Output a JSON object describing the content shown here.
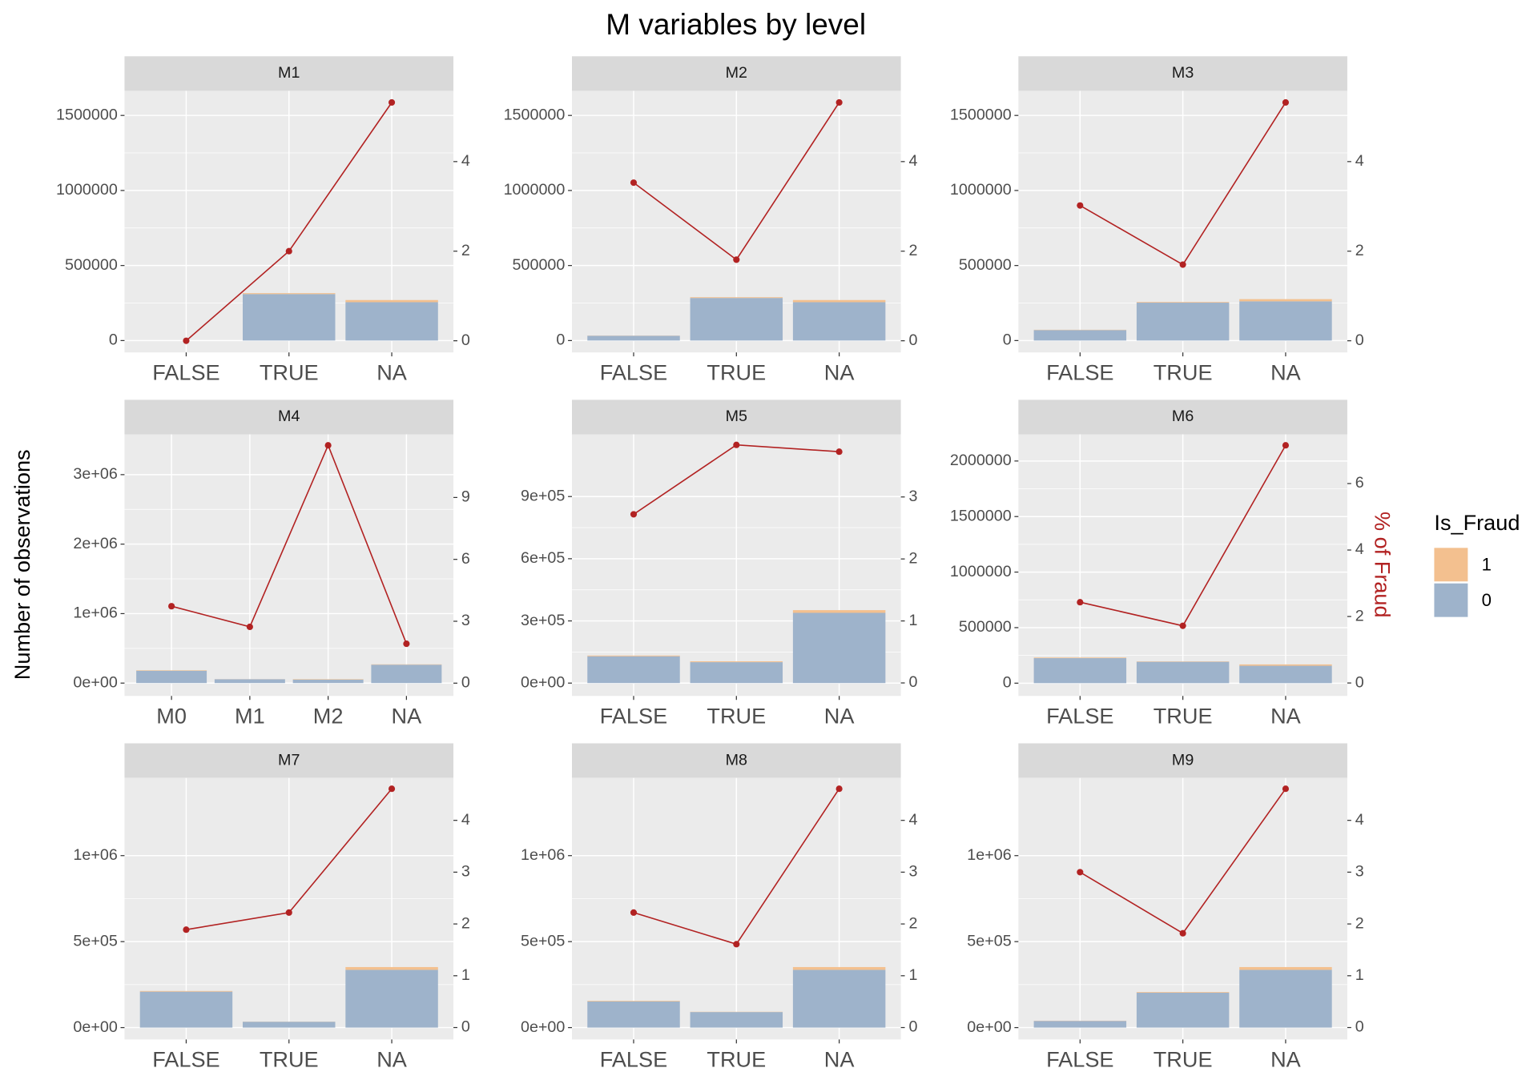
{
  "title": "M variables by level",
  "y_label": "Number of observations",
  "y2_label": "% of Fraud",
  "legend": {
    "title": "Is_Fraud",
    "entries": [
      {
        "name": "1",
        "color": "#f3c08f"
      },
      {
        "name": "0",
        "color": "#9eb3cb"
      }
    ]
  },
  "chart_data": [
    {
      "type": "bar",
      "title": "M1",
      "categories": [
        "FALSE",
        "TRUE",
        "NA"
      ],
      "series": [
        {
          "color": "#9eb3cb",
          "values": [
            25,
            309680,
            255600
          ]
        },
        {
          "color": "#f3c08f",
          "values": [
            0,
            6320,
            14400
          ]
        },
        {
          "type": "line",
          "axis": "y2",
          "color": "#b22222",
          "values": [
            0,
            2.0,
            5.32
          ]
        }
      ],
      "ylim": [
        -79000,
        1664000
      ],
      "yticks": [
        0,
        500000,
        1000000,
        1500000
      ],
      "y2lim": [
        -0.26,
        5.58
      ],
      "y2ticks": [
        0,
        2,
        4
      ]
    },
    {
      "type": "bar",
      "title": "M2",
      "categories": [
        "FALSE",
        "TRUE",
        "NA"
      ],
      "series": [
        {
          "color": "#9eb3cb",
          "values": [
            31800,
            283800,
            255600
          ]
        },
        {
          "color": "#f3c08f",
          "values": [
            1200,
            5200,
            14400
          ]
        },
        {
          "type": "line",
          "axis": "y2",
          "color": "#b22222",
          "values": [
            3.53,
            1.81,
            5.32
          ]
        }
      ],
      "ylim": [
        -79000,
        1664000
      ],
      "yticks": [
        0,
        500000,
        1000000,
        1500000
      ],
      "y2lim": [
        -0.26,
        5.58
      ],
      "y2ticks": [
        0,
        2,
        4
      ]
    },
    {
      "type": "bar",
      "title": "M3",
      "categories": [
        "FALSE",
        "TRUE",
        "NA"
      ],
      "series": [
        {
          "color": "#9eb3cb",
          "values": [
            69800,
            252600,
            261300
          ]
        },
        {
          "color": "#f3c08f",
          "values": [
            2200,
            4400,
            14700
          ]
        },
        {
          "type": "line",
          "axis": "y2",
          "color": "#b22222",
          "values": [
            3.02,
            1.7,
            5.32
          ]
        }
      ],
      "ylim": [
        -79000,
        1664000
      ],
      "yticks": [
        0,
        500000,
        1000000,
        1500000
      ],
      "y2lim": [
        -0.26,
        5.58
      ],
      "y2ticks": [
        0,
        2,
        4
      ]
    },
    {
      "type": "bar",
      "title": "M4",
      "categories": [
        "M0",
        "M1",
        "M2",
        "NA"
      ],
      "series": [
        {
          "color": "#9eb3cb",
          "values": [
            178100,
            55400,
            50400,
            264800
          ]
        },
        {
          "color": "#f3c08f",
          "values": [
            6900,
            1600,
            6600,
            5200
          ]
        },
        {
          "type": "line",
          "axis": "y2",
          "color": "#b22222",
          "values": [
            3.73,
            2.73,
            11.53,
            1.91
          ]
        }
      ],
      "ylim": [
        -185000,
        3580000
      ],
      "yticks": [
        {
          "value": 0,
          "label": "0e+00"
        },
        {
          "value": 1000000,
          "label": "1e+06"
        },
        {
          "value": 2000000,
          "label": "2e+06"
        },
        {
          "value": 3000000,
          "label": "3e+06"
        }
      ],
      "y2lim": [
        -0.62,
        12.06
      ],
      "y2ticks": [
        0,
        3,
        6,
        9
      ]
    },
    {
      "type": "bar",
      "title": "M5",
      "categories": [
        "FALSE",
        "TRUE",
        "NA"
      ],
      "series": [
        {
          "color": "#9eb3cb",
          "values": [
            129400,
            101000,
            338900
          ]
        },
        {
          "color": "#f3c08f",
          "values": [
            3600,
            4000,
            13100
          ]
        },
        {
          "type": "line",
          "axis": "y2",
          "color": "#b22222",
          "values": [
            2.72,
            3.84,
            3.73
          ]
        }
      ],
      "ylim": [
        -62000,
        1200000
      ],
      "yticks": [
        {
          "value": 0,
          "label": "0e+00"
        },
        {
          "value": 300000,
          "label": "3e+05"
        },
        {
          "value": 600000,
          "label": "6e+05"
        },
        {
          "value": 900000,
          "label": "9e+05"
        }
      ],
      "y2lim": [
        -0.21,
        4.01
      ],
      "y2ticks": [
        0,
        1,
        2,
        3
      ]
    },
    {
      "type": "bar",
      "title": "M6",
      "categories": [
        "FALSE",
        "TRUE",
        "NA"
      ],
      "series": [
        {
          "color": "#9eb3cb",
          "values": [
            225400,
            192600,
            156900
          ]
        },
        {
          "color": "#f3c08f",
          "values": [
            5600,
            3400,
            12100
          ]
        },
        {
          "type": "line",
          "axis": "y2",
          "color": "#b22222",
          "values": [
            2.43,
            1.72,
            7.15
          ]
        }
      ],
      "ylim": [
        -115000,
        2240000
      ],
      "yticks": [
        0,
        500000,
        1000000,
        1500000,
        2000000
      ],
      "y2lim": [
        -0.39,
        7.48
      ],
      "y2ticks": [
        0,
        2,
        4,
        6
      ]
    },
    {
      "type": "bar",
      "title": "M7",
      "categories": [
        "FALSE",
        "TRUE",
        "NA"
      ],
      "series": [
        {
          "color": "#9eb3cb",
          "values": [
            209000,
            34200,
            335800
          ]
        },
        {
          "color": "#f3c08f",
          "values": [
            4000,
            800,
            16200
          ]
        },
        {
          "type": "line",
          "axis": "y2",
          "color": "#b22222",
          "values": [
            1.89,
            2.22,
            4.61
          ]
        }
      ],
      "ylim": [
        -69000,
        1452000
      ],
      "yticks": [
        {
          "value": 0,
          "label": "0e+00"
        },
        {
          "value": 500000,
          "label": "5e+05"
        },
        {
          "value": 1000000,
          "label": "1e+06"
        }
      ],
      "y2lim": [
        -0.23,
        4.82
      ],
      "y2ticks": [
        0,
        1,
        2,
        3,
        4
      ]
    },
    {
      "type": "bar",
      "title": "M8",
      "categories": [
        "FALSE",
        "TRUE",
        "NA"
      ],
      "series": [
        {
          "color": "#9eb3cb",
          "values": [
            152500,
            90500,
            335800
          ]
        },
        {
          "color": "#f3c08f",
          "values": [
            3500,
            1500,
            16200
          ]
        },
        {
          "type": "line",
          "axis": "y2",
          "color": "#b22222",
          "values": [
            2.22,
            1.61,
            4.61
          ]
        }
      ],
      "ylim": [
        -69000,
        1452000
      ],
      "yticks": [
        {
          "value": 0,
          "label": "0e+00"
        },
        {
          "value": 500000,
          "label": "5e+05"
        },
        {
          "value": 1000000,
          "label": "1e+06"
        }
      ],
      "y2lim": [
        -0.23,
        4.82
      ],
      "y2ticks": [
        0,
        1,
        2,
        3,
        4
      ]
    },
    {
      "type": "bar",
      "title": "M9",
      "categories": [
        "FALSE",
        "TRUE",
        "NA"
      ],
      "series": [
        {
          "color": "#9eb3cb",
          "values": [
            38800,
            203200,
            335800
          ]
        },
        {
          "color": "#f3c08f",
          "values": [
            1200,
            3800,
            16200
          ]
        },
        {
          "type": "line",
          "axis": "y2",
          "color": "#b22222",
          "values": [
            3.0,
            1.82,
            4.61
          ]
        }
      ],
      "ylim": [
        -69000,
        1452000
      ],
      "yticks": [
        {
          "value": 0,
          "label": "0e+00"
        },
        {
          "value": 500000,
          "label": "5e+05"
        },
        {
          "value": 1000000,
          "label": "1e+06"
        }
      ],
      "y2lim": [
        -0.23,
        4.82
      ],
      "y2ticks": [
        0,
        1,
        2,
        3,
        4
      ]
    }
  ]
}
